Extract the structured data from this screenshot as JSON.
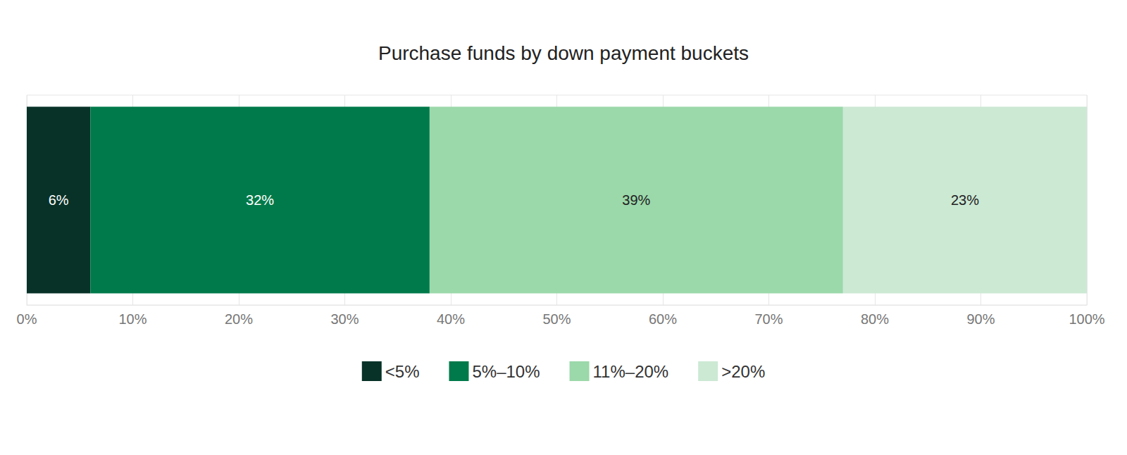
{
  "chart_data": {
    "type": "bar",
    "title": "Purchase funds by down payment buckets",
    "orientation": "horizontal",
    "stacked": true,
    "data_labels": true,
    "grid": true,
    "legend": "bottom",
    "categories": [
      null
    ],
    "series": [
      {
        "name": "<5%",
        "color": "#083228",
        "values": [
          6
        ],
        "value_labels": [
          "6%"
        ]
      },
      {
        "name": "5%–10%",
        "color": "#007a4a",
        "values": [
          32
        ],
        "value_labels": [
          "32%"
        ]
      },
      {
        "name": "11%–20%",
        "color": "#9bd8aa",
        "values": [
          39
        ],
        "value_labels": [
          "39%"
        ]
      },
      {
        "name": ">20%",
        "color": "#cce9d4",
        "values": [
          23
        ],
        "value_labels": [
          "23%"
        ]
      }
    ],
    "xlim": [
      0,
      100
    ],
    "xticks": [
      {
        "value": 0,
        "label": "0%"
      },
      {
        "value": 10,
        "label": "10%"
      },
      {
        "value": 20,
        "label": "20%"
      },
      {
        "value": 30,
        "label": "30%"
      },
      {
        "value": 40,
        "label": "40%"
      },
      {
        "value": 50,
        "label": "50%"
      },
      {
        "value": 60,
        "label": "60%"
      },
      {
        "value": 70,
        "label": "70%"
      },
      {
        "value": 80,
        "label": "80%"
      },
      {
        "value": 90,
        "label": "90%"
      },
      {
        "value": 100,
        "label": "100%"
      }
    ]
  }
}
